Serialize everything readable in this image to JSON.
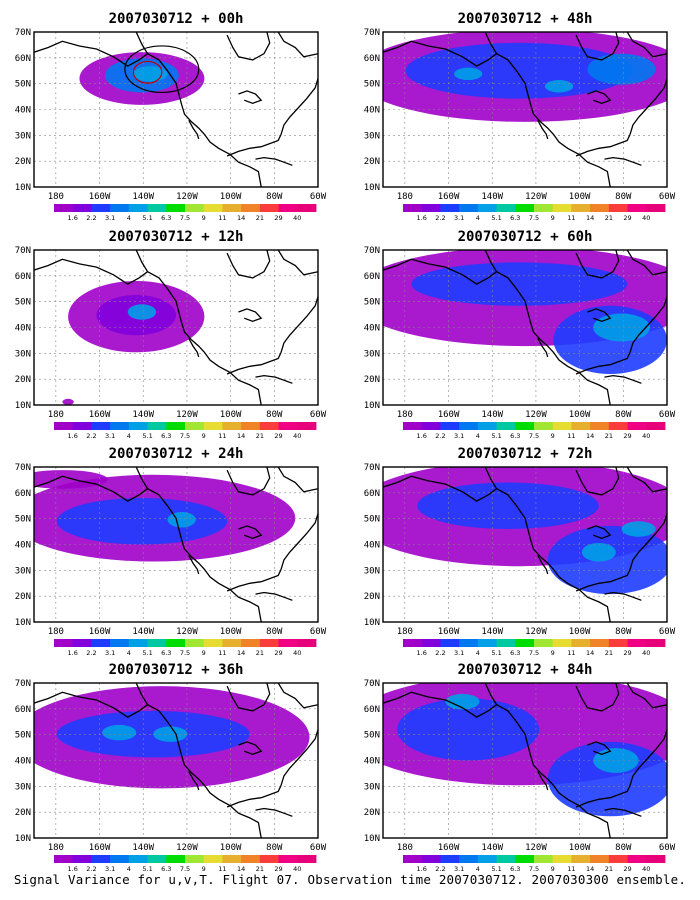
{
  "panels": [
    {
      "title": "2007030712 + 00h",
      "lead": 0
    },
    {
      "title": "2007030712 + 48h",
      "lead": 48
    },
    {
      "title": "2007030712 + 12h",
      "lead": 12
    },
    {
      "title": "2007030712 + 60h",
      "lead": 60
    },
    {
      "title": "2007030712 + 24h",
      "lead": 24
    },
    {
      "title": "2007030712 + 72h",
      "lead": 72
    },
    {
      "title": "2007030712 + 36h",
      "lead": 36
    },
    {
      "title": "2007030712 + 84h",
      "lead": 84
    }
  ],
  "map": {
    "lat_labels": [
      "10N",
      "20N",
      "30N",
      "40N",
      "50N",
      "60N",
      "70N"
    ],
    "lon_labels": [
      "180",
      "160W",
      "140W",
      "120W",
      "100W",
      "80W",
      "60W"
    ],
    "lat_range": [
      10,
      70
    ],
    "lon_range": [
      -190,
      -60
    ]
  },
  "legend": {
    "labels": [
      "1.6",
      "2.2",
      "3.1",
      "4",
      "5.1",
      "6.3",
      "7.5",
      "9",
      "11",
      "14",
      "21",
      "29",
      "40"
    ],
    "colors": [
      "#a000c8",
      "#8200dc",
      "#1e3cff",
      "#0078f0",
      "#00a0e6",
      "#00c8a0",
      "#00dc00",
      "#a0e632",
      "#e6dc32",
      "#e6af2d",
      "#f08228",
      "#fa3c3c",
      "#f00082",
      "#e6007a"
    ]
  },
  "caption": "Signal Variance for u,v,T. Flight 07. Observation time 2007030712. 2007030300 ensemble."
}
